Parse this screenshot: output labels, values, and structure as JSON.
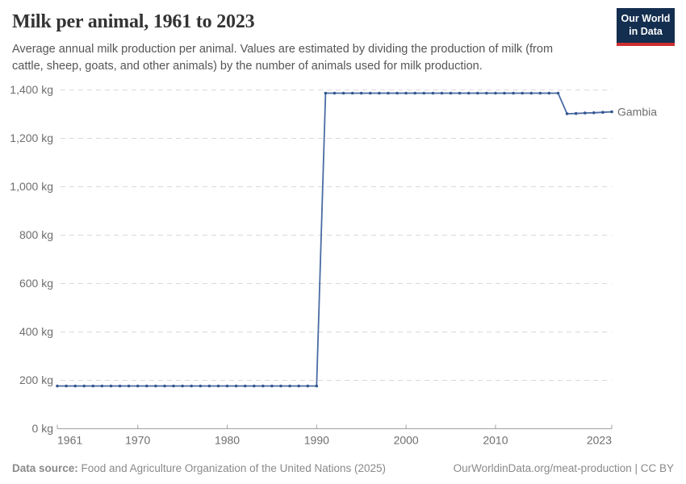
{
  "header": {
    "title": "Milk per animal, 1961 to 2023",
    "subtitle": "Average annual milk production per animal. Values are estimated by dividing the production of milk (from\ncattle, sheep, goats, and other animals) by the number of animals used for milk production."
  },
  "logo": {
    "line1": "Our World",
    "line2": "in Data",
    "bg_color": "#132e4f",
    "stripe_color": "#ce2e31"
  },
  "footer": {
    "source_label": "Data source:",
    "source_text": " Food and Agriculture Organization of the United Nations (2025)",
    "credit": "OurWorldinData.org/meat-production | CC BY"
  },
  "chart_data": {
    "type": "line",
    "title": "Milk per animal, 1961 to 2023",
    "ylabel": "",
    "xlabel": "",
    "unit": "kg",
    "xlim": [
      1961,
      2023
    ],
    "ylim": [
      0,
      1400
    ],
    "xticks": [
      1961,
      1970,
      1980,
      1990,
      2000,
      2010,
      2023
    ],
    "yticks": [
      0,
      200,
      400,
      600,
      800,
      1000,
      1200,
      1400
    ],
    "grid": "dashed-horizontal",
    "legend_position": "right-end-of-line",
    "x": [
      1961,
      1962,
      1963,
      1964,
      1965,
      1966,
      1967,
      1968,
      1969,
      1970,
      1971,
      1972,
      1973,
      1974,
      1975,
      1976,
      1977,
      1978,
      1979,
      1980,
      1981,
      1982,
      1983,
      1984,
      1985,
      1986,
      1987,
      1988,
      1989,
      1990,
      1991,
      1992,
      1993,
      1994,
      1995,
      1996,
      1997,
      1998,
      1999,
      2000,
      2001,
      2002,
      2003,
      2004,
      2005,
      2006,
      2007,
      2008,
      2009,
      2010,
      2011,
      2012,
      2013,
      2014,
      2015,
      2016,
      2017,
      2018,
      2019,
      2020,
      2021,
      2022,
      2023
    ],
    "series": [
      {
        "name": "Gambia",
        "values": [
          175,
          175,
          175,
          175,
          175,
          175,
          175,
          175,
          175,
          175,
          175,
          175,
          175,
          175,
          175,
          175,
          175,
          175,
          175,
          175,
          175,
          175,
          175,
          175,
          175,
          175,
          175,
          175,
          175,
          175,
          1385,
          1385,
          1385,
          1385,
          1385,
          1385,
          1385,
          1385,
          1385,
          1385,
          1385,
          1385,
          1385,
          1385,
          1385,
          1385,
          1385,
          1385,
          1385,
          1385,
          1385,
          1385,
          1385,
          1385,
          1385,
          1385,
          1385,
          1300,
          1301,
          1303,
          1304,
          1306,
          1308
        ]
      }
    ],
    "colors": {
      "line": "#4a6ba4",
      "dot": "#35568f",
      "entity_label": "#5b7db1",
      "grid": "#d9d9d9",
      "axis": "#a1a1a1",
      "tick_text": "#6e6e6e"
    }
  }
}
